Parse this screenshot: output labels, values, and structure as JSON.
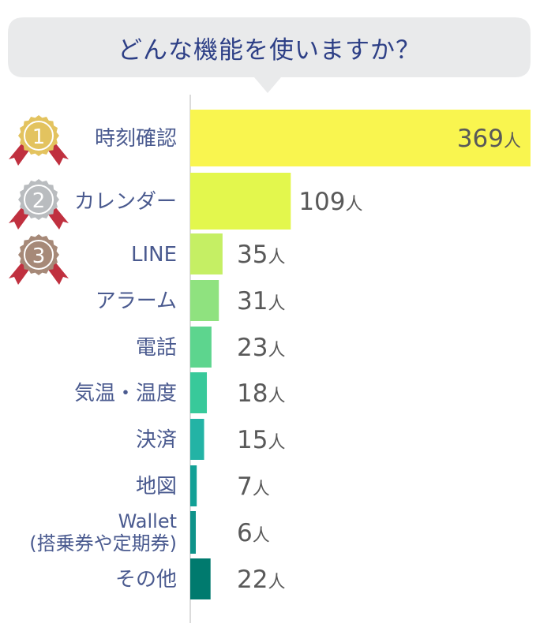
{
  "title": "どんな機能を使いますか？",
  "chart_data": {
    "type": "bar",
    "orientation": "horizontal",
    "categories": [
      "時刻確認",
      "カレンダー",
      "LINE",
      "アラーム",
      "電話",
      "気温・温度",
      "決済",
      "地図",
      "Wallet\n(搭乗券や定期券)",
      "その他"
    ],
    "values": [
      369,
      109,
      35,
      31,
      23,
      18,
      15,
      7,
      6,
      22
    ],
    "unit": "人",
    "ranks": [
      1,
      2,
      3
    ],
    "colors": [
      "#f9f54f",
      "#e3f74d",
      "#c5ef64",
      "#8fe27f",
      "#5dd58e",
      "#38c99a",
      "#23b3a5",
      "#12a096",
      "#0e938a",
      "#007a6e"
    ],
    "medal_colors": [
      "#e3c35f",
      "#b9bcbf",
      "#a68978"
    ],
    "title_color": "#2d3f86",
    "label_color": "#4a5a8f",
    "value_color": "#595959"
  }
}
